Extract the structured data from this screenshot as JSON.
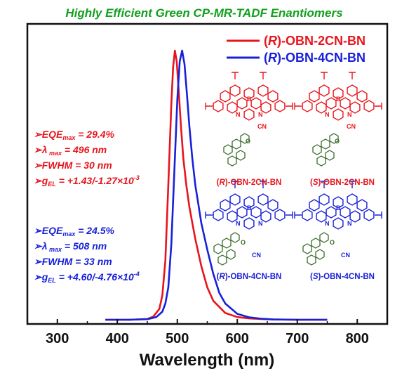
{
  "colors": {
    "red": "#e8141c",
    "blue": "#1820d8",
    "green": "#12a01e",
    "dark_green": "#3a6b2a",
    "axis": "#111111"
  },
  "title": "Highly Efficient Green CP-MR-TADF Enantiomers",
  "legend": {
    "r2cn": {
      "pre": "(",
      "r": "R",
      "post": ")-OBN-2CN-BN"
    },
    "r4cn": {
      "pre": "(",
      "r": "R",
      "post": ")-OBN-4CN-BN"
    }
  },
  "annotations": {
    "red": {
      "eqe_label": "EQE",
      "eqe_sub": "max",
      "eqe_val": " = 29.4%",
      "lambda_label": "λ",
      "lambda_sub": " max",
      "lambda_val": " = 496 nm",
      "fwhm": "FWHM = 30 nm",
      "g_label": "g",
      "g_sub": "EL",
      "g_val": " = +1.43/-1.27×10",
      "g_exp": "-3"
    },
    "blue": {
      "eqe_label": "EQE",
      "eqe_sub": "max",
      "eqe_val": " = 24.5%",
      "lambda_label": "λ",
      "lambda_sub": " max",
      "lambda_val": " = 508 nm",
      "fwhm": "FWHM = 33 nm",
      "g_label": "g",
      "g_sub": "EL",
      "g_val": " = +4.60/-4.76×10",
      "g_exp": "-4"
    }
  },
  "molecules": {
    "r2cn": {
      "pre": "(",
      "r": "R",
      "post": ")-OBN-2CN-BN"
    },
    "s2cn": {
      "pre": "(",
      "r": "S",
      "post": ")-OBN-2CN-BN"
    },
    "r4cn": {
      "pre": "(",
      "r": "R",
      "post": ")-OBN-4CN-BN"
    },
    "s4cn": {
      "pre": "(",
      "r": "S",
      "post": ")-OBN-4CN-BN"
    },
    "atom_B": "B",
    "atom_N": "N",
    "atom_O": "O",
    "cn": "CN"
  },
  "chart_data": {
    "type": "line",
    "title": "Highly Efficient Green CP-MR-TADF Enantiomers",
    "xlabel": "Wavelength (nm)",
    "ylabel": "",
    "xlim": [
      250,
      850
    ],
    "ylim": [
      0,
      1.0
    ],
    "x_ticks": [
      300,
      400,
      500,
      600,
      700,
      800
    ],
    "grid": false,
    "legend_position": "top-right",
    "series": [
      {
        "name": "(R)-OBN-2CN-BN",
        "color": "#e8141c",
        "x": [
          380,
          420,
          450,
          460,
          470,
          475,
          480,
          485,
          490,
          493,
          496,
          499,
          502,
          506,
          510,
          515,
          520,
          525,
          530,
          540,
          550,
          560,
          580,
          600,
          620,
          640,
          660,
          700,
          750
        ],
        "y": [
          0.0,
          0.0,
          0.003,
          0.012,
          0.04,
          0.09,
          0.22,
          0.5,
          0.8,
          0.94,
          1.0,
          0.96,
          0.86,
          0.72,
          0.6,
          0.5,
          0.42,
          0.36,
          0.3,
          0.2,
          0.12,
          0.07,
          0.025,
          0.01,
          0.005,
          0.003,
          0.001,
          0.0,
          0.0
        ]
      },
      {
        "name": "(R)-OBN-4CN-BN",
        "color": "#1820d8",
        "x": [
          380,
          420,
          450,
          465,
          475,
          480,
          485,
          490,
          495,
          500,
          504,
          508,
          512,
          516,
          520,
          525,
          530,
          535,
          540,
          550,
          560,
          570,
          580,
          600,
          620,
          640,
          660,
          700,
          750
        ],
        "y": [
          0.0,
          0.0,
          0.002,
          0.01,
          0.03,
          0.06,
          0.12,
          0.28,
          0.55,
          0.82,
          0.96,
          1.0,
          0.95,
          0.84,
          0.72,
          0.6,
          0.5,
          0.43,
          0.36,
          0.26,
          0.17,
          0.1,
          0.06,
          0.022,
          0.009,
          0.004,
          0.001,
          0.0,
          0.0
        ]
      }
    ]
  }
}
